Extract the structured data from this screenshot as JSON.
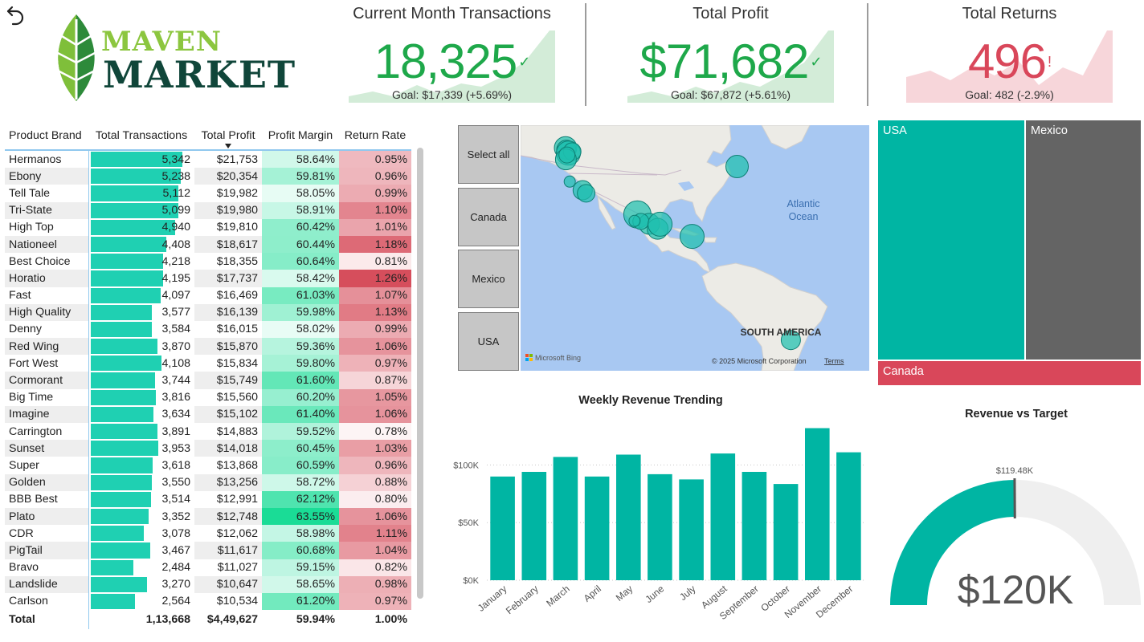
{
  "logo": {
    "word1": "MAVEN",
    "word2": "MARKET"
  },
  "kpis": [
    {
      "title": "Current Month Transactions",
      "value": "18,325",
      "mark": "✓",
      "goal": "Goal: $17,339 (+5.69%)",
      "status": "good"
    },
    {
      "title": "Total Profit",
      "value": "$71,682",
      "mark": "✓",
      "goal": "Goal: $67,872 (+5.61%)",
      "status": "good"
    },
    {
      "title": "Total Returns",
      "value": "496",
      "mark": "!",
      "goal": "Goal: 482 (-2.9%)",
      "status": "bad"
    }
  ],
  "colors": {
    "good": "#1ea84a",
    "bad": "#d9475a",
    "teal": "#00b5a3",
    "bar": "#1fd0b2",
    "grey": "#646464",
    "red": "#d9475a"
  },
  "table": {
    "headers": [
      "Product Brand",
      "Total Transactions",
      "Total Profit",
      "Profit Margin",
      "Return Rate"
    ],
    "rows": [
      {
        "brand": "Hermanos",
        "tx": "5,342",
        "txv": 5342,
        "profit": "$21,753",
        "margin": "58.64%",
        "mv": 58.64,
        "ret": "0.95%",
        "rv": 0.95
      },
      {
        "brand": "Ebony",
        "tx": "5,238",
        "txv": 5238,
        "profit": "$20,354",
        "margin": "59.81%",
        "mv": 59.81,
        "ret": "0.96%",
        "rv": 0.96
      },
      {
        "brand": "Tell Tale",
        "tx": "5,112",
        "txv": 5112,
        "profit": "$19,982",
        "margin": "58.05%",
        "mv": 58.05,
        "ret": "0.99%",
        "rv": 0.99
      },
      {
        "brand": "Tri-State",
        "tx": "5,099",
        "txv": 5099,
        "profit": "$19,980",
        "margin": "58.91%",
        "mv": 58.91,
        "ret": "1.10%",
        "rv": 1.1
      },
      {
        "brand": "High Top",
        "tx": "4,940",
        "txv": 4940,
        "profit": "$19,810",
        "margin": "60.42%",
        "mv": 60.42,
        "ret": "1.01%",
        "rv": 1.01
      },
      {
        "brand": "Nationeel",
        "tx": "4,408",
        "txv": 4408,
        "profit": "$18,617",
        "margin": "60.44%",
        "mv": 60.44,
        "ret": "1.18%",
        "rv": 1.18
      },
      {
        "brand": "Best Choice",
        "tx": "4,218",
        "txv": 4218,
        "profit": "$18,355",
        "margin": "60.64%",
        "mv": 60.64,
        "ret": "0.81%",
        "rv": 0.81
      },
      {
        "brand": "Horatio",
        "tx": "4,195",
        "txv": 4195,
        "profit": "$17,737",
        "margin": "58.42%",
        "mv": 58.42,
        "ret": "1.26%",
        "rv": 1.26
      },
      {
        "brand": "Fast",
        "tx": "4,097",
        "txv": 4097,
        "profit": "$16,469",
        "margin": "61.03%",
        "mv": 61.03,
        "ret": "1.07%",
        "rv": 1.07
      },
      {
        "brand": "High Quality",
        "tx": "3,577",
        "txv": 3577,
        "profit": "$16,139",
        "margin": "59.98%",
        "mv": 59.98,
        "ret": "1.13%",
        "rv": 1.13
      },
      {
        "brand": "Denny",
        "tx": "3,584",
        "txv": 3584,
        "profit": "$16,015",
        "margin": "58.02%",
        "mv": 58.02,
        "ret": "0.99%",
        "rv": 0.99
      },
      {
        "brand": "Red Wing",
        "tx": "3,870",
        "txv": 3870,
        "profit": "$15,870",
        "margin": "59.36%",
        "mv": 59.36,
        "ret": "1.06%",
        "rv": 1.06
      },
      {
        "brand": "Fort West",
        "tx": "4,108",
        "txv": 4108,
        "profit": "$15,834",
        "margin": "59.80%",
        "mv": 59.8,
        "ret": "0.97%",
        "rv": 0.97
      },
      {
        "brand": "Cormorant",
        "tx": "3,744",
        "txv": 3744,
        "profit": "$15,749",
        "margin": "61.60%",
        "mv": 61.6,
        "ret": "0.87%",
        "rv": 0.87
      },
      {
        "brand": "Big Time",
        "tx": "3,816",
        "txv": 3816,
        "profit": "$15,560",
        "margin": "60.20%",
        "mv": 60.2,
        "ret": "1.05%",
        "rv": 1.05
      },
      {
        "brand": "Imagine",
        "tx": "3,634",
        "txv": 3634,
        "profit": "$15,102",
        "margin": "61.40%",
        "mv": 61.4,
        "ret": "1.06%",
        "rv": 1.06
      },
      {
        "brand": "Carrington",
        "tx": "3,891",
        "txv": 3891,
        "profit": "$14,883",
        "margin": "59.52%",
        "mv": 59.52,
        "ret": "0.78%",
        "rv": 0.78
      },
      {
        "brand": "Sunset",
        "tx": "3,953",
        "txv": 3953,
        "profit": "$14,018",
        "margin": "60.45%",
        "mv": 60.45,
        "ret": "1.03%",
        "rv": 1.03
      },
      {
        "brand": "Super",
        "tx": "3,618",
        "txv": 3618,
        "profit": "$13,868",
        "margin": "60.59%",
        "mv": 60.59,
        "ret": "0.96%",
        "rv": 0.96
      },
      {
        "brand": "Golden",
        "tx": "3,550",
        "txv": 3550,
        "profit": "$13,256",
        "margin": "58.72%",
        "mv": 58.72,
        "ret": "0.88%",
        "rv": 0.88
      },
      {
        "brand": "BBB Best",
        "tx": "3,514",
        "txv": 3514,
        "profit": "$12,991",
        "margin": "62.12%",
        "mv": 62.12,
        "ret": "0.80%",
        "rv": 0.8
      },
      {
        "brand": "Plato",
        "tx": "3,352",
        "txv": 3352,
        "profit": "$12,748",
        "margin": "63.55%",
        "mv": 63.55,
        "ret": "1.06%",
        "rv": 1.06
      },
      {
        "brand": "CDR",
        "tx": "3,078",
        "txv": 3078,
        "profit": "$12,062",
        "margin": "58.98%",
        "mv": 58.98,
        "ret": "1.11%",
        "rv": 1.11
      },
      {
        "brand": "PigTail",
        "tx": "3,467",
        "txv": 3467,
        "profit": "$11,617",
        "margin": "60.68%",
        "mv": 60.68,
        "ret": "1.04%",
        "rv": 1.04
      },
      {
        "brand": "Bravo",
        "tx": "2,484",
        "txv": 2484,
        "profit": "$11,027",
        "margin": "59.15%",
        "mv": 59.15,
        "ret": "0.82%",
        "rv": 0.82
      },
      {
        "brand": "Landslide",
        "tx": "3,270",
        "txv": 3270,
        "profit": "$10,647",
        "margin": "58.65%",
        "mv": 58.65,
        "ret": "0.98%",
        "rv": 0.98
      },
      {
        "brand": "Carlson",
        "tx": "2,564",
        "txv": 2564,
        "profit": "$10,534",
        "margin": "61.20%",
        "mv": 61.2,
        "ret": "0.97%",
        "rv": 0.97
      }
    ],
    "total": {
      "label": "Total",
      "tx": "1,13,668",
      "profit": "$4,49,627",
      "margin": "59.94%",
      "ret": "1.00%"
    }
  },
  "slicer": {
    "items": [
      "Select all",
      "Canada",
      "Mexico",
      "USA"
    ]
  },
  "map": {
    "ocean_label": [
      "Atlantic",
      "Ocean"
    ],
    "continent_label": "SOUTH AMERICA",
    "bing": "Microsoft Bing",
    "copyright": "© 2025 Microsoft Corporation",
    "terms": "Terms",
    "bubbles": [
      {
        "lon": -123.1,
        "lat": 49.3,
        "size": 14
      },
      {
        "lon": -122.9,
        "lat": 48.7,
        "size": 12
      },
      {
        "lon": -122.3,
        "lat": 47.6,
        "size": 15
      },
      {
        "lon": -121.2,
        "lat": 48.1,
        "size": 11
      },
      {
        "lon": -123.0,
        "lat": 45.5,
        "size": 13
      },
      {
        "lon": -122.7,
        "lat": 47.0,
        "size": 10
      },
      {
        "lon": -118.2,
        "lat": 34.0,
        "size": 12
      },
      {
        "lon": -117.2,
        "lat": 32.7,
        "size": 11
      },
      {
        "lon": -121.9,
        "lat": 37.4,
        "size": 7
      },
      {
        "lon": -73.9,
        "lat": 43.0,
        "size": 14
      },
      {
        "lon": -102.5,
        "lat": 23.6,
        "size": 17
      },
      {
        "lon": -99.1,
        "lat": 19.4,
        "size": 13
      },
      {
        "lon": -101.5,
        "lat": 20.5,
        "size": 10
      },
      {
        "lon": -103.3,
        "lat": 20.7,
        "size": 7
      },
      {
        "lon": -96.7,
        "lat": 17.1,
        "size": 13
      },
      {
        "lon": -96.0,
        "lat": 19.2,
        "size": 15
      },
      {
        "lon": -86.8,
        "lat": 13.5,
        "size": 15
      },
      {
        "lon": -58.5,
        "lat": -34.6,
        "size": 12
      }
    ]
  },
  "treemap": [
    {
      "name": "USA",
      "share": 0.56
    },
    {
      "name": "Mexico",
      "share": 0.44
    },
    {
      "name": "Canada",
      "share": 0.09
    }
  ],
  "chart_data": [
    {
      "type": "bar",
      "title": "Weekly Revenue Trending",
      "categories": [
        "January",
        "February",
        "March",
        "April",
        "May",
        "June",
        "July",
        "August",
        "September",
        "October",
        "November",
        "December"
      ],
      "values": [
        90000,
        94000,
        107000,
        90000,
        109000,
        92000,
        87500,
        110000,
        94000,
        83500,
        132000,
        111000
      ],
      "ylim": [
        0,
        140000
      ],
      "yticks": [
        {
          "v": 0,
          "label": "$0K"
        },
        {
          "v": 50000,
          "label": "$50K"
        },
        {
          "v": 100000,
          "label": "$100K"
        }
      ],
      "grid": true
    },
    {
      "type": "gauge",
      "title": "Revenue vs Target",
      "value": 120000,
      "value_label": "$120K",
      "target": 119480,
      "target_label": "$119.48K",
      "max": 240000
    }
  ]
}
